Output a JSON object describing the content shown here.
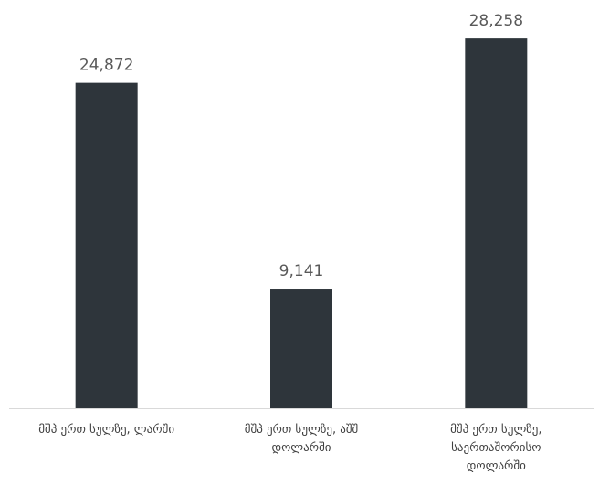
{
  "chart_data": {
    "type": "bar",
    "categories": [
      [
        "მშპ ერთ სულზე, ლარში"
      ],
      [
        "მშპ ერთ სულზე, აშშ",
        "დოლარში"
      ],
      [
        "მშპ ერთ სულზე,",
        "საერთაშორისო",
        "დოლარში"
      ]
    ],
    "values": [
      24872,
      9141,
      28258
    ],
    "value_labels": [
      "24,872",
      "9,141",
      "28,258"
    ],
    "ylim": [
      0,
      30500
    ],
    "grid": false,
    "legend": "none",
    "colors": {
      "bar": "#2e353b",
      "axis": "#d9d9d9",
      "value_text": "#595959",
      "category_text": "#404040"
    }
  }
}
